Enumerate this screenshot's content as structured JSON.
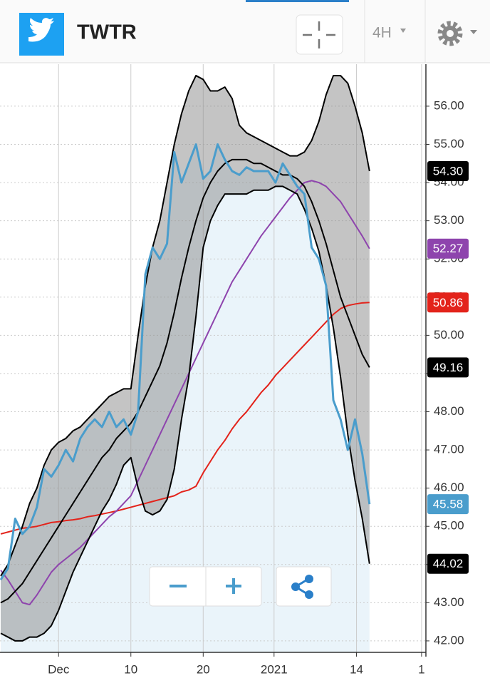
{
  "chart_data": {
    "type": "line",
    "title": "TWTR",
    "interval": "4H",
    "x": [
      -8,
      -7,
      -6,
      -5,
      -4,
      -3,
      -2,
      -1,
      0,
      1,
      2,
      3,
      4,
      5,
      6,
      7,
      8,
      9,
      10,
      11,
      12,
      13,
      14,
      15,
      16,
      17,
      18,
      19,
      20,
      21,
      22,
      23,
      24,
      25,
      26,
      27,
      28,
      29,
      30,
      31,
      32,
      33,
      34,
      35,
      36,
      37,
      38,
      39,
      40,
      41,
      42,
      43
    ],
    "xlim": [
      -8.1,
      50.8
    ],
    "xticks": [
      {
        "value": 0,
        "label": "Dec"
      },
      10,
      20,
      {
        "value": 29.8,
        "label": "2021"
      },
      {
        "value": 41.2,
        "label": "14"
      },
      {
        "value": 50.2,
        "label": "1"
      }
    ],
    "ylim": [
      41.7,
      57.1
    ],
    "yticks": [
      {
        "value": 42,
        "label": "42.00"
      },
      {
        "value": 43,
        "label": "43.00"
      },
      {
        "value": 44,
        "label": "44.00"
      },
      {
        "value": 45,
        "label": "45.00"
      },
      {
        "value": 46,
        "label": "46.00"
      },
      {
        "value": 47,
        "label": "47.00"
      },
      {
        "value": 48,
        "label": "48.00"
      },
      {
        "value": 49,
        "label": "49.00"
      },
      {
        "value": 50,
        "label": "50.00"
      },
      {
        "value": 51,
        "label": "51.00"
      },
      {
        "value": 52,
        "label": "52.00"
      },
      {
        "value": 53,
        "label": "53.00"
      },
      {
        "value": 54,
        "label": "54.00"
      },
      {
        "value": 55,
        "label": "55.00"
      },
      {
        "value": 56,
        "label": "56.00"
      }
    ],
    "grid": true,
    "series": [
      {
        "color": "#4a9dcc",
        "values": [
          43.6,
          43.9,
          45.2,
          44.8,
          45.0,
          45.5,
          46.5,
          46.3,
          46.6,
          47.0,
          46.7,
          47.3,
          47.6,
          47.8,
          47.6,
          48.0,
          47.6,
          47.8,
          47.4,
          48.0,
          51.6,
          52.3,
          52.0,
          52.4,
          54.8,
          54.0,
          54.5,
          55.0,
          54.1,
          54.3,
          55.0,
          54.6,
          54.3,
          54.2,
          54.4,
          54.3,
          54.3,
          54.3,
          54.0,
          54.5,
          54.2,
          53.9,
          53.7,
          52.3,
          52.0,
          51.3,
          48.3,
          47.8,
          47.0,
          47.8,
          46.9,
          45.58
        ],
        "value_labels": [
          null,
          null,
          null,
          null,
          null,
          null,
          null,
          null,
          null,
          null,
          null,
          null,
          null,
          null,
          null,
          null,
          null,
          null,
          null,
          null,
          null,
          null,
          null,
          null,
          null,
          null,
          null,
          null,
          null,
          null,
          null,
          null,
          null,
          null,
          null,
          null,
          null,
          null,
          null,
          null,
          null,
          null,
          null,
          null,
          null,
          null,
          null,
          null,
          null,
          null,
          null,
          "45.58"
        ]
      },
      {
        "color": "#000000",
        "values": [
          43.7,
          44.0,
          44.5,
          45.0,
          45.6,
          46.0,
          46.6,
          47.0,
          47.2,
          47.3,
          47.5,
          47.6,
          47.8,
          48.0,
          48.2,
          48.4,
          48.5,
          48.6,
          48.6,
          50.0,
          51.3,
          52.3,
          53.0,
          54.0,
          55.0,
          55.8,
          56.4,
          56.8,
          56.7,
          56.4,
          56.4,
          56.5,
          56.2,
          55.5,
          55.3,
          55.2,
          55.1,
          55.0,
          54.9,
          54.8,
          54.7,
          54.7,
          54.8,
          55.1,
          55.6,
          56.3,
          56.8,
          56.8,
          56.6,
          56.0,
          55.3,
          54.3
        ],
        "value_labels": [
          null,
          null,
          null,
          null,
          null,
          null,
          null,
          null,
          null,
          null,
          null,
          null,
          null,
          null,
          null,
          null,
          null,
          null,
          null,
          null,
          null,
          null,
          null,
          null,
          null,
          null,
          null,
          null,
          null,
          null,
          null,
          null,
          null,
          null,
          null,
          null,
          null,
          null,
          null,
          null,
          null,
          null,
          null,
          null,
          null,
          null,
          null,
          null,
          null,
          null,
          null,
          "54.30"
        ]
      },
      {
        "color": "#000000",
        "values": [
          43.0,
          43.1,
          43.3,
          43.5,
          43.8,
          44.1,
          44.4,
          44.7,
          45.0,
          45.3,
          45.6,
          45.9,
          46.2,
          46.5,
          46.8,
          47.0,
          47.3,
          47.5,
          47.7,
          48.0,
          48.4,
          48.8,
          49.2,
          49.8,
          50.6,
          51.5,
          52.3,
          53.0,
          53.6,
          54.0,
          54.3,
          54.5,
          54.6,
          54.6,
          54.6,
          54.5,
          54.5,
          54.4,
          54.3,
          54.2,
          54.2,
          54.1,
          53.9,
          53.5,
          53.0,
          52.4,
          51.7,
          51.0,
          50.5,
          50.0,
          49.5,
          49.16
        ],
        "value_labels": [
          null,
          null,
          null,
          null,
          null,
          null,
          null,
          null,
          null,
          null,
          null,
          null,
          null,
          null,
          null,
          null,
          null,
          null,
          null,
          null,
          null,
          null,
          null,
          null,
          null,
          null,
          null,
          null,
          null,
          null,
          null,
          null,
          null,
          null,
          null,
          null,
          null,
          null,
          null,
          null,
          null,
          null,
          null,
          null,
          null,
          null,
          null,
          null,
          null,
          null,
          null,
          "49.16"
        ]
      },
      {
        "color": "#000000",
        "values": [
          42.2,
          42.1,
          42.0,
          42.0,
          42.1,
          42.1,
          42.2,
          42.4,
          42.8,
          43.3,
          43.8,
          44.2,
          44.6,
          45.0,
          45.4,
          45.7,
          46.1,
          46.6,
          46.8,
          46.0,
          45.4,
          45.3,
          45.4,
          45.7,
          46.5,
          47.8,
          48.9,
          50.5,
          52.3,
          53.0,
          53.4,
          53.7,
          53.7,
          53.7,
          53.7,
          53.8,
          53.8,
          53.8,
          53.9,
          53.9,
          53.8,
          53.7,
          53.3,
          52.8,
          52.2,
          51.3,
          50.2,
          48.9,
          47.4,
          46.2,
          45.2,
          44.02
        ],
        "value_labels": [
          null,
          null,
          null,
          null,
          null,
          null,
          null,
          null,
          null,
          null,
          null,
          null,
          null,
          null,
          null,
          null,
          null,
          null,
          null,
          null,
          null,
          null,
          null,
          null,
          null,
          null,
          null,
          null,
          null,
          null,
          null,
          null,
          null,
          null,
          null,
          null,
          null,
          null,
          null,
          null,
          null,
          null,
          null,
          null,
          null,
          null,
          null,
          null,
          null,
          null,
          null,
          "44.02"
        ]
      },
      {
        "color": "#8e44ad",
        "values": [
          43.85,
          43.6,
          43.3,
          43.0,
          42.95,
          43.2,
          43.5,
          43.8,
          44.0,
          44.15,
          44.3,
          44.45,
          44.65,
          44.85,
          45.05,
          45.25,
          45.4,
          45.6,
          45.8,
          46.2,
          46.6,
          47.0,
          47.4,
          47.8,
          48.2,
          48.6,
          49.0,
          49.4,
          49.8,
          50.2,
          50.6,
          51.0,
          51.4,
          51.7,
          52.0,
          52.3,
          52.6,
          52.85,
          53.1,
          53.35,
          53.6,
          53.8,
          54.0,
          54.05,
          54.0,
          53.9,
          53.7,
          53.5,
          53.2,
          52.9,
          52.6,
          52.27
        ],
        "value_labels": [
          null,
          null,
          null,
          null,
          null,
          null,
          null,
          null,
          null,
          null,
          null,
          null,
          null,
          null,
          null,
          null,
          null,
          null,
          null,
          null,
          null,
          null,
          null,
          null,
          null,
          null,
          null,
          null,
          null,
          null,
          null,
          null,
          null,
          null,
          null,
          null,
          null,
          null,
          null,
          null,
          null,
          null,
          null,
          null,
          null,
          null,
          null,
          null,
          null,
          null,
          null,
          "52.27"
        ]
      },
      {
        "color": "#e3231b",
        "values": [
          44.8,
          44.85,
          44.9,
          44.95,
          44.97,
          45.0,
          45.05,
          45.1,
          45.12,
          45.15,
          45.17,
          45.2,
          45.25,
          45.28,
          45.32,
          45.36,
          45.4,
          45.45,
          45.5,
          45.55,
          45.6,
          45.65,
          45.7,
          45.75,
          45.8,
          45.9,
          45.95,
          46.05,
          46.4,
          46.7,
          47.0,
          47.25,
          47.55,
          47.8,
          48.0,
          48.25,
          48.5,
          48.7,
          48.95,
          49.15,
          49.35,
          49.55,
          49.75,
          49.95,
          50.15,
          50.35,
          50.55,
          50.7,
          50.78,
          50.82,
          50.85,
          50.86
        ],
        "value_labels": [
          null,
          null,
          null,
          null,
          null,
          null,
          null,
          null,
          null,
          null,
          null,
          null,
          null,
          null,
          null,
          null,
          null,
          null,
          null,
          null,
          null,
          null,
          null,
          null,
          null,
          null,
          null,
          null,
          null,
          null,
          null,
          null,
          null,
          null,
          null,
          null,
          null,
          null,
          null,
          null,
          null,
          null,
          null,
          null,
          null,
          null,
          null,
          null,
          null,
          null,
          null,
          "50.86"
        ]
      }
    ]
  }
}
